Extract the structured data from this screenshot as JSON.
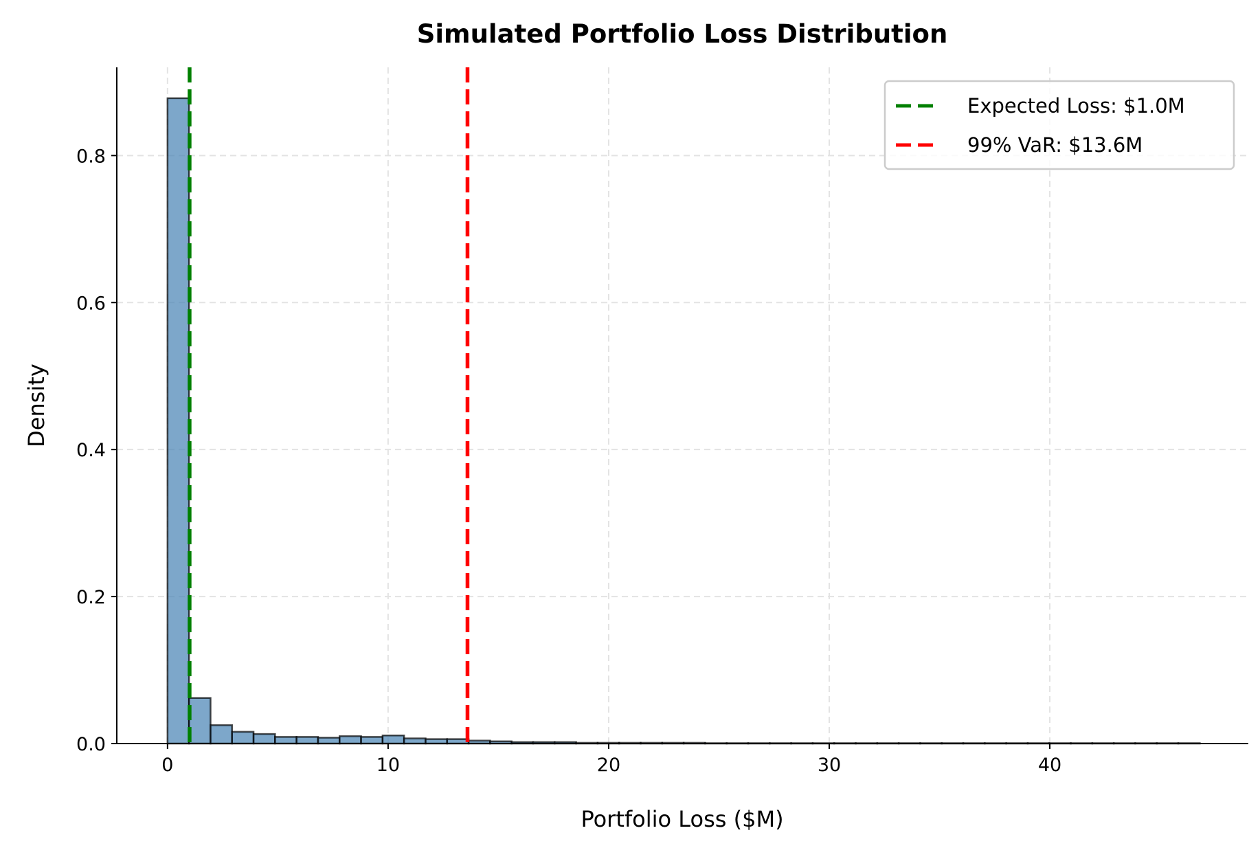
{
  "chart_data": {
    "type": "bar",
    "subtype": "histogram",
    "title": "Simulated Portfolio Loss Distribution",
    "xlabel": "Portfolio Loss ($M)",
    "ylabel": "Density",
    "xlim": [
      -2.3,
      49
    ],
    "ylim": [
      0,
      0.92
    ],
    "xticks": [
      0,
      10,
      20,
      30,
      40
    ],
    "yticks": [
      0.0,
      0.2,
      0.4,
      0.6,
      0.8
    ],
    "ytick_labels": [
      "0.0",
      "0.2",
      "0.4",
      "0.6",
      "0.8"
    ],
    "grid": true,
    "bin_start": 0,
    "bin_width": 0.975,
    "values": [
      0.878,
      0.062,
      0.025,
      0.016,
      0.013,
      0.009,
      0.009,
      0.008,
      0.01,
      0.009,
      0.011,
      0.007,
      0.006,
      0.006,
      0.004,
      0.003,
      0.002,
      0.002,
      0.002,
      0.001,
      0.001,
      0.001,
      0.001,
      0.001,
      0.001,
      0.0005,
      0.0005,
      0.0005,
      0.0005,
      0.0005,
      0.0005,
      0.0005,
      0.0005,
      0.0005,
      0.0005,
      0.0005,
      0.0005,
      0.0005,
      0.0005,
      0.0005,
      0.0005,
      0.0005,
      0.0005,
      0.0005,
      0.0005,
      0.0005,
      0.0005,
      0.0005
    ],
    "bar_color": "#4682b4",
    "vlines": [
      {
        "name": "Expected Loss: $1.0M",
        "x": 1.0,
        "color": "#008000",
        "style": "dashed"
      },
      {
        "name": "99% VaR: $13.6M",
        "x": 13.6,
        "color": "#ff0000",
        "style": "dashed"
      }
    ],
    "legend_position": "top-right"
  }
}
